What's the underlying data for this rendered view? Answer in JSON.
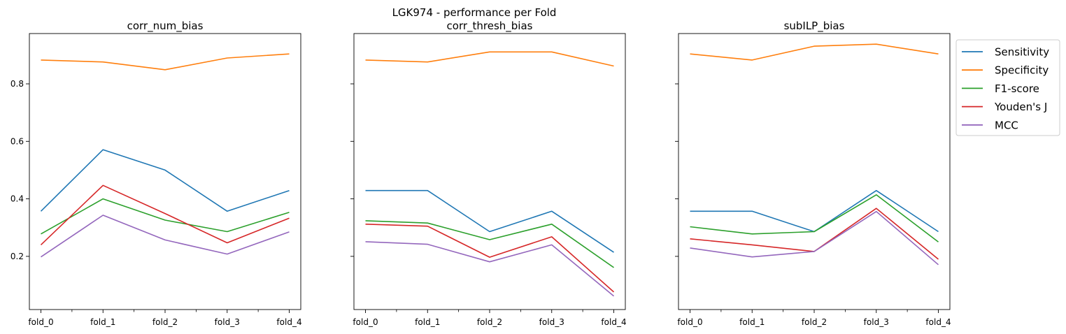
{
  "figure": {
    "suptitle": "LGK974 - performance per Fold"
  },
  "legend": {
    "placement": "outside-right",
    "entries": [
      "Sensitivity",
      "Specificity",
      "F1-score",
      "Youden's J",
      "MCC"
    ]
  },
  "series_colors": {
    "Sensitivity": "#1f77b4",
    "Specificity": "#ff7f0e",
    "F1-score": "#2ca02c",
    "Youden's J": "#d62728",
    "MCC": "#9467bd"
  },
  "chart_data": [
    {
      "type": "line",
      "title": "corr_num_bias",
      "xlabel": "",
      "ylabel": "",
      "x": [
        "fold_0",
        "fold_1",
        "fold_2",
        "fold_3",
        "fold_4"
      ],
      "ylim": [
        0.015,
        0.975
      ],
      "yticks": [
        0.2,
        0.4,
        0.6,
        0.8
      ],
      "yticklabels": [
        "0.2",
        "0.4",
        "0.6",
        "0.8"
      ],
      "show_yticklabels": true,
      "grid": false,
      "series": [
        {
          "name": "Sensitivity",
          "values": [
            0.357,
            0.571,
            0.5,
            0.357,
            0.429
          ]
        },
        {
          "name": "Specificity",
          "values": [
            0.883,
            0.876,
            0.849,
            0.89,
            0.904
          ]
        },
        {
          "name": "F1-score",
          "values": [
            0.278,
            0.4,
            0.326,
            0.286,
            0.353
          ]
        },
        {
          "name": "Youden's J",
          "values": [
            0.24,
            0.447,
            0.349,
            0.247,
            0.333
          ]
        },
        {
          "name": "MCC",
          "values": [
            0.198,
            0.343,
            0.257,
            0.208,
            0.285
          ]
        }
      ]
    },
    {
      "type": "line",
      "title": "corr_thresh_bias",
      "xlabel": "",
      "ylabel": "",
      "x": [
        "fold_0",
        "fold_1",
        "fold_2",
        "fold_3",
        "fold_4"
      ],
      "ylim": [
        0.015,
        0.975
      ],
      "yticks": [
        0.2,
        0.4,
        0.6,
        0.8
      ],
      "yticklabels": [
        "0.2",
        "0.4",
        "0.6",
        "0.8"
      ],
      "show_yticklabels": false,
      "grid": false,
      "series": [
        {
          "name": "Sensitivity",
          "values": [
            0.429,
            0.429,
            0.286,
            0.357,
            0.214
          ]
        },
        {
          "name": "Specificity",
          "values": [
            0.883,
            0.876,
            0.911,
            0.911,
            0.862
          ]
        },
        {
          "name": "F1-score",
          "values": [
            0.324,
            0.316,
            0.258,
            0.312,
            0.161
          ]
        },
        {
          "name": "Youden's J",
          "values": [
            0.312,
            0.305,
            0.197,
            0.268,
            0.076
          ]
        },
        {
          "name": "MCC",
          "values": [
            0.251,
            0.242,
            0.181,
            0.24,
            0.062
          ]
        }
      ]
    },
    {
      "type": "line",
      "title": "subILP_bias",
      "xlabel": "",
      "ylabel": "",
      "x": [
        "fold_0",
        "fold_1",
        "fold_2",
        "fold_3",
        "fold_4"
      ],
      "ylim": [
        0.015,
        0.975
      ],
      "yticks": [
        0.2,
        0.4,
        0.6,
        0.8
      ],
      "yticklabels": [
        "0.2",
        "0.4",
        "0.6",
        "0.8"
      ],
      "show_yticklabels": false,
      "grid": false,
      "series": [
        {
          "name": "Sensitivity",
          "values": [
            0.357,
            0.357,
            0.286,
            0.429,
            0.286
          ]
        },
        {
          "name": "Specificity",
          "values": [
            0.904,
            0.883,
            0.931,
            0.938,
            0.904
          ]
        },
        {
          "name": "F1-score",
          "values": [
            0.303,
            0.278,
            0.286,
            0.414,
            0.25
          ]
        },
        {
          "name": "Youden's J",
          "values": [
            0.261,
            0.24,
            0.217,
            0.367,
            0.19
          ]
        },
        {
          "name": "MCC",
          "values": [
            0.229,
            0.198,
            0.217,
            0.356,
            0.171
          ]
        }
      ]
    }
  ]
}
